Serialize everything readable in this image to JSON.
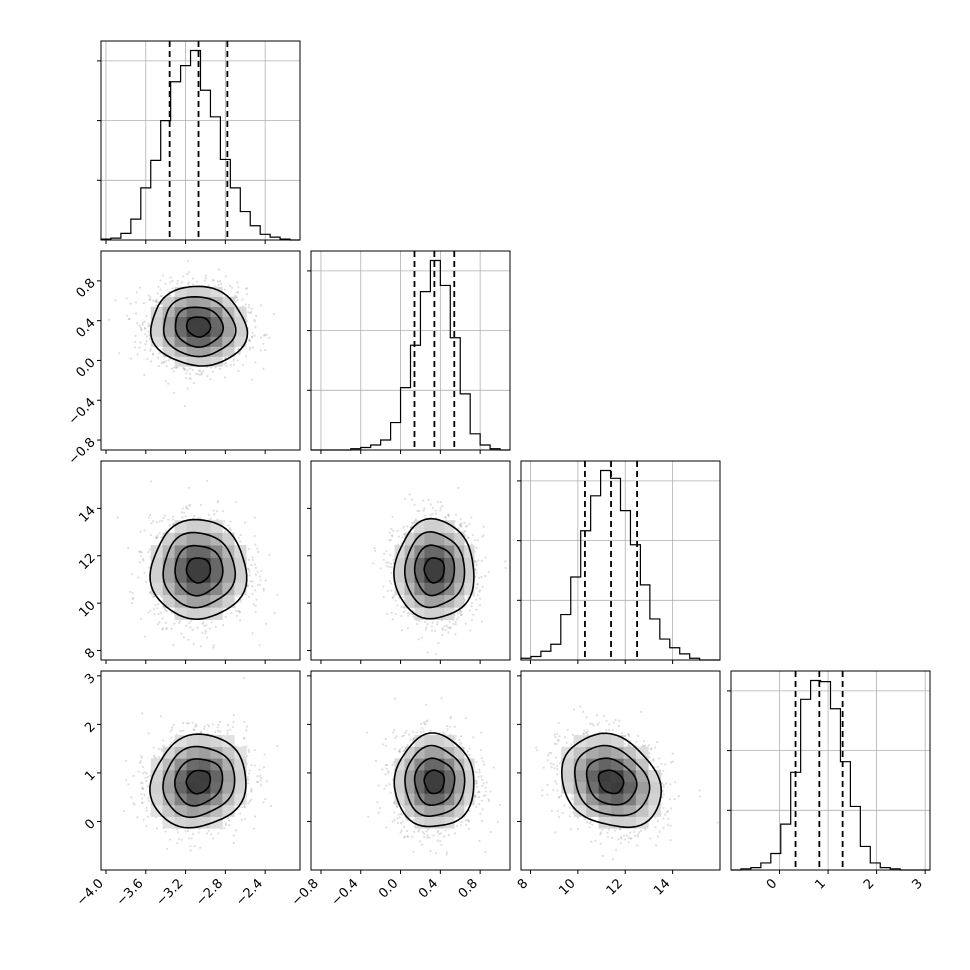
{
  "chart_data": {
    "type": "corner",
    "title": "",
    "grid": true,
    "parameters": [
      {
        "id": "p0",
        "range": [
          -4.05,
          -2.05
        ],
        "ticks": [
          -4.0,
          -3.6,
          -3.2,
          -2.8,
          -2.4
        ],
        "tick_labels": [
          "−4.0",
          "−3.6",
          "−3.2",
          "−2.8",
          "−2.4"
        ],
        "quantiles": [
          -3.36,
          -3.07,
          -2.78
        ],
        "histogram": {
          "bin_edges": [
            -4.05,
            -3.95,
            -3.85,
            -3.75,
            -3.65,
            -3.55,
            -3.45,
            -3.35,
            -3.25,
            -3.15,
            -3.05,
            -2.95,
            -2.85,
            -2.75,
            -2.65,
            -2.55,
            -2.45,
            -2.35,
            -2.25,
            -2.15,
            -2.05
          ],
          "counts": [
            1,
            2,
            7,
            22,
            55,
            84,
            126,
            167,
            184,
            200,
            158,
            130,
            85,
            55,
            30,
            15,
            6,
            3,
            1,
            0
          ]
        }
      },
      {
        "id": "p1",
        "range": [
          -0.9,
          1.1
        ],
        "ticks": [
          -0.8,
          -0.4,
          0.0,
          0.4,
          0.8
        ],
        "tick_labels": [
          "−0.8",
          "−0.4",
          "0.0",
          "0.4",
          "0.8"
        ],
        "quantiles": [
          0.14,
          0.34,
          0.54
        ],
        "histogram": {
          "bin_edges": [
            -0.9,
            -0.8,
            -0.7,
            -0.6,
            -0.5,
            -0.4,
            -0.3,
            -0.2,
            -0.1,
            0.0,
            0.1,
            0.2,
            0.3,
            0.4,
            0.5,
            0.6,
            0.7,
            0.8,
            0.9,
            1.0,
            1.1
          ],
          "counts": [
            0,
            0,
            0,
            0,
            1,
            2,
            4,
            8,
            22,
            50,
            84,
            127,
            152,
            132,
            90,
            45,
            13,
            4,
            1,
            0
          ]
        }
      },
      {
        "id": "p2",
        "range": [
          7.6,
          16.0
        ],
        "ticks": [
          8,
          10,
          12,
          14
        ],
        "tick_labels": [
          "8",
          "10",
          "12",
          "14"
        ],
        "quantiles": [
          10.3,
          11.4,
          12.5
        ],
        "histogram": {
          "bin_edges": [
            7.6,
            8.02,
            8.44,
            8.86,
            9.28,
            9.7,
            10.12,
            10.54,
            10.96,
            11.38,
            11.8,
            12.22,
            12.64,
            13.04,
            13.46,
            13.88,
            14.3,
            14.72,
            15.14,
            15.56,
            16.0
          ],
          "counts": [
            2,
            4,
            10,
            18,
            52,
            95,
            148,
            188,
            217,
            208,
            171,
            132,
            86,
            47,
            24,
            14,
            7,
            2,
            0,
            0
          ]
        }
      },
      {
        "id": "p3",
        "range": [
          -1.0,
          3.1
        ],
        "ticks": [
          0,
          1,
          2,
          3
        ],
        "tick_labels": [
          "0",
          "1",
          "2",
          "3"
        ],
        "quantiles": [
          0.33,
          0.82,
          1.3
        ],
        "histogram": {
          "bin_edges": [
            -1.0,
            -0.795,
            -0.59,
            -0.385,
            -0.18,
            0.025,
            0.23,
            0.435,
            0.64,
            0.845,
            1.05,
            1.255,
            1.46,
            1.665,
            1.87,
            2.075,
            2.28,
            2.485,
            2.69,
            2.895,
            3.1
          ],
          "counts": [
            0,
            1,
            2,
            6,
            14,
            39,
            83,
            145,
            161,
            160,
            137,
            92,
            54,
            20,
            6,
            2,
            1,
            0,
            0,
            0
          ]
        }
      }
    ],
    "pairs": [
      {
        "x": 0,
        "y": 1,
        "center": [
          -3.07,
          0.34
        ],
        "sigma": [
          0.24,
          0.2
        ],
        "rho": -0.05
      },
      {
        "x": 0,
        "y": 2,
        "center": [
          -3.07,
          11.4
        ],
        "sigma": [
          0.24,
          1.05
        ],
        "rho": 0.0
      },
      {
        "x": 1,
        "y": 2,
        "center": [
          0.34,
          11.4
        ],
        "sigma": [
          0.2,
          1.05
        ],
        "rho": 0.0
      },
      {
        "x": 0,
        "y": 3,
        "center": [
          -3.07,
          0.82
        ],
        "sigma": [
          0.24,
          0.48
        ],
        "rho": 0.1
      },
      {
        "x": 1,
        "y": 3,
        "center": [
          0.34,
          0.82
        ],
        "sigma": [
          0.2,
          0.48
        ],
        "rho": 0.0
      },
      {
        "x": 2,
        "y": 3,
        "center": [
          11.4,
          0.82
        ],
        "sigma": [
          1.05,
          0.48
        ],
        "rho": -0.2
      }
    ]
  }
}
